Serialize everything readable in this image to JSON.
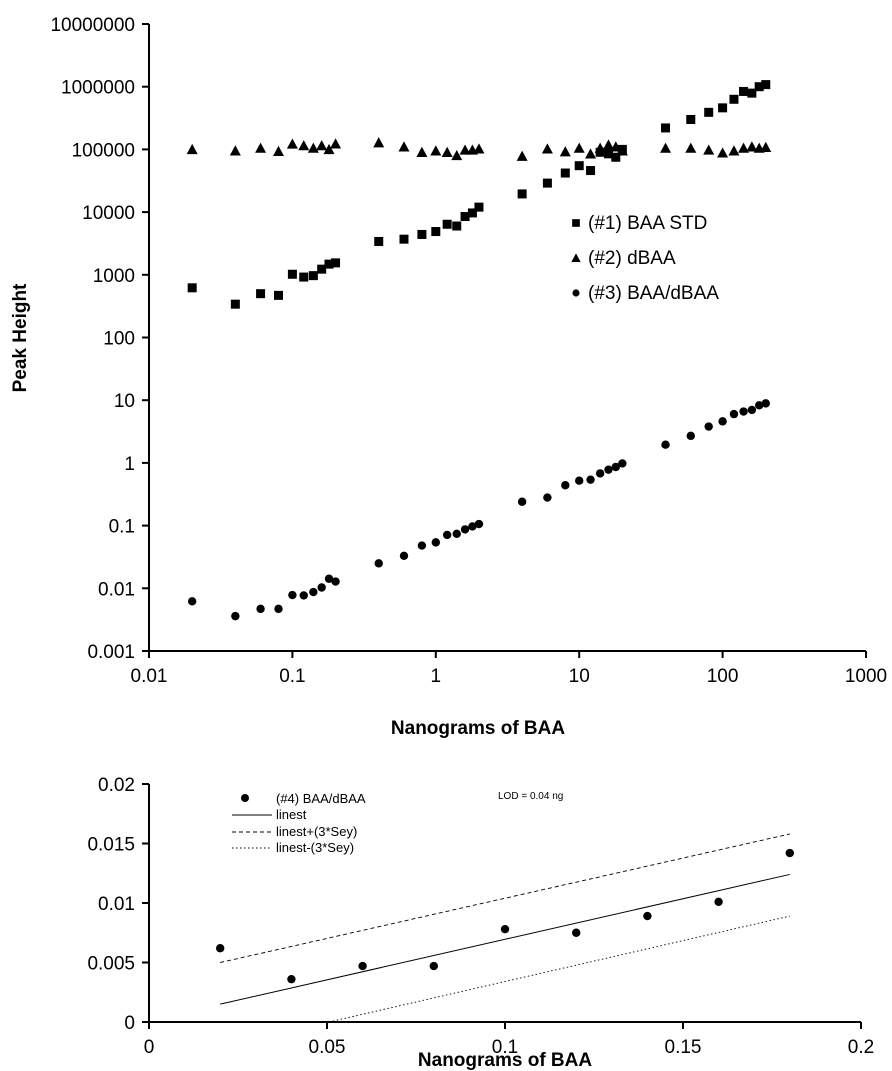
{
  "chart_data": [
    {
      "type": "scatter",
      "xscale": "log",
      "yscale": "log",
      "xlabel": "Nanograms of BAA",
      "ylabel": "Peak Height",
      "xlim": [
        0.01,
        1000
      ],
      "ylim": [
        0.001,
        10000000
      ],
      "xticks": [
        "0.01",
        "0.1",
        "1",
        "10",
        "100",
        "1000"
      ],
      "yticks": [
        "0.001",
        "0.01",
        "0.1",
        "1",
        "10",
        "100",
        "1000",
        "10000",
        "100000",
        "1000000",
        "10000000"
      ],
      "legend": "center-right",
      "series": [
        {
          "name": "(#1) BAA STD",
          "marker": "square",
          "points": [
            [
              0.02,
              620
            ],
            [
              0.04,
              340
            ],
            [
              0.06,
              500
            ],
            [
              0.08,
              470
            ],
            [
              0.1,
              1020
            ],
            [
              0.12,
              920
            ],
            [
              0.14,
              970
            ],
            [
              0.16,
              1230
            ],
            [
              0.18,
              1480
            ],
            [
              0.2,
              1550
            ],
            [
              0.4,
              3400
            ],
            [
              0.6,
              3700
            ],
            [
              0.8,
              4400
            ],
            [
              1,
              4900
            ],
            [
              1.2,
              6400
            ],
            [
              1.4,
              6000
            ],
            [
              1.6,
              8500
            ],
            [
              1.8,
              9700
            ],
            [
              2,
              12000
            ],
            [
              4,
              19500
            ],
            [
              6,
              29000
            ],
            [
              8,
              42000
            ],
            [
              10,
              55000
            ],
            [
              12,
              46000
            ],
            [
              14,
              90000
            ],
            [
              16,
              85000
            ],
            [
              18,
              75000
            ],
            [
              20,
              100000
            ],
            [
              40,
              220000
            ],
            [
              60,
              300000
            ],
            [
              80,
              390000
            ],
            [
              100,
              460000
            ],
            [
              120,
              630000
            ],
            [
              140,
              840000
            ],
            [
              160,
              790000
            ],
            [
              180,
              1000000
            ],
            [
              200,
              1080000
            ]
          ]
        },
        {
          "name": "(#2) dBAA",
          "marker": "triangle",
          "points": [
            [
              0.02,
              100000
            ],
            [
              0.04,
              95000
            ],
            [
              0.06,
              105000
            ],
            [
              0.08,
              93000
            ],
            [
              0.1,
              122000
            ],
            [
              0.12,
              115000
            ],
            [
              0.14,
              105000
            ],
            [
              0.16,
              115000
            ],
            [
              0.18,
              100000
            ],
            [
              0.2,
              123000
            ],
            [
              0.4,
              128000
            ],
            [
              0.6,
              110000
            ],
            [
              0.8,
              90000
            ],
            [
              1,
              95000
            ],
            [
              1.2,
              90000
            ],
            [
              1.4,
              80000
            ],
            [
              1.6,
              98000
            ],
            [
              1.8,
              98000
            ],
            [
              2,
              102000
            ],
            [
              4,
              78000
            ],
            [
              6,
              102000
            ],
            [
              8,
              92000
            ],
            [
              10,
              105000
            ],
            [
              12,
              85000
            ],
            [
              14,
              105000
            ],
            [
              16,
              118000
            ],
            [
              18,
              110000
            ],
            [
              20,
              95000
            ],
            [
              40,
              105000
            ],
            [
              60,
              105000
            ],
            [
              80,
              98000
            ],
            [
              100,
              88000
            ],
            [
              120,
              95000
            ],
            [
              140,
              105000
            ],
            [
              160,
              110000
            ],
            [
              180,
              105000
            ],
            [
              200,
              108000
            ]
          ]
        },
        {
          "name": "(#3) BAA/dBAA",
          "marker": "circle",
          "points": [
            [
              0.02,
              0.0062
            ],
            [
              0.04,
              0.0036
            ],
            [
              0.06,
              0.0047
            ],
            [
              0.08,
              0.0047
            ],
            [
              0.1,
              0.0078
            ],
            [
              0.12,
              0.0077
            ],
            [
              0.14,
              0.0087
            ],
            [
              0.16,
              0.0103
            ],
            [
              0.18,
              0.0142
            ],
            [
              0.2,
              0.0128
            ],
            [
              0.4,
              0.025
            ],
            [
              0.6,
              0.033
            ],
            [
              0.8,
              0.048
            ],
            [
              1,
              0.054
            ],
            [
              1.2,
              0.071
            ],
            [
              1.4,
              0.074
            ],
            [
              1.6,
              0.087
            ],
            [
              1.8,
              0.097
            ],
            [
              2,
              0.106
            ],
            [
              4,
              0.24
            ],
            [
              6,
              0.28
            ],
            [
              8,
              0.44
            ],
            [
              10,
              0.52
            ],
            [
              12,
              0.54
            ],
            [
              14,
              0.68
            ],
            [
              16,
              0.78
            ],
            [
              18,
              0.86
            ],
            [
              20,
              0.98
            ],
            [
              40,
              1.95
            ],
            [
              60,
              2.7
            ],
            [
              80,
              3.8
            ],
            [
              100,
              4.6
            ],
            [
              120,
              6.0
            ],
            [
              140,
              6.6
            ],
            [
              160,
              7.0
            ],
            [
              180,
              8.3
            ],
            [
              200,
              8.9
            ]
          ]
        }
      ]
    },
    {
      "type": "scatter",
      "xlabel": "Nanograms of BAA",
      "ylabel": "",
      "xlim": [
        0,
        0.2
      ],
      "ylim": [
        0,
        0.02
      ],
      "xticks": [
        "0",
        "0.05",
        "0.1",
        "0.15",
        "0.2"
      ],
      "yticks": [
        "0",
        "0.005",
        "0.01",
        "0.015",
        "0.02"
      ],
      "legend": "top-left",
      "annotation": "LOD = 0.04 ng",
      "series": [
        {
          "name": "(#4) BAA/dBAA",
          "marker": "circle",
          "points": [
            [
              0.02,
              0.0062
            ],
            [
              0.04,
              0.0036
            ],
            [
              0.06,
              0.0047
            ],
            [
              0.08,
              0.0047
            ],
            [
              0.1,
              0.0078
            ],
            [
              0.12,
              0.0075
            ],
            [
              0.14,
              0.0089
            ],
            [
              0.16,
              0.0101
            ],
            [
              0.18,
              0.0142
            ]
          ]
        },
        {
          "name": "linest",
          "style": "solid",
          "line": [
            [
              0.02,
              0.0015
            ],
            [
              0.18,
              0.0124
            ]
          ]
        },
        {
          "name": "linest+(3*Sey)",
          "style": "dashed",
          "line": [
            [
              0.02,
              0.005
            ],
            [
              0.18,
              0.0158
            ]
          ]
        },
        {
          "name": "linest-(3*Sey)",
          "style": "dotted",
          "line": [
            [
              0.02,
              -0.0021
            ],
            [
              0.18,
              0.0089
            ]
          ]
        }
      ]
    }
  ]
}
